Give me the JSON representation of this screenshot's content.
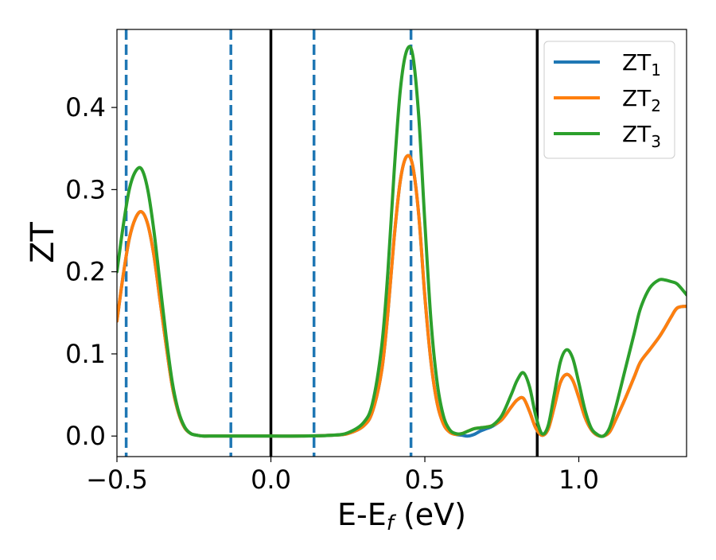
{
  "chart_data": {
    "type": "line",
    "xlabel_main": "E-E",
    "xlabel_sub": "f",
    "xlabel_unit": " (eV)",
    "ylabel": "ZT",
    "xlim": [
      -0.5,
      1.35
    ],
    "ylim": [
      -0.025,
      0.495
    ],
    "x_ticks": [
      -0.5,
      0.0,
      0.5,
      1.0
    ],
    "x_tick_labels": [
      "−0.5",
      "0.0",
      "0.5",
      "1.0"
    ],
    "y_ticks": [
      0.0,
      0.1,
      0.2,
      0.3,
      0.4
    ],
    "y_tick_labels": [
      "0.0",
      "0.1",
      "0.2",
      "0.3",
      "0.4"
    ],
    "grid": false,
    "legend_position": "top-right",
    "vlines_dashed": [
      -0.47,
      -0.13,
      0.14,
      0.455
    ],
    "vlines_solid": [
      0.0,
      0.865
    ],
    "series": [
      {
        "name": "ZT",
        "name_sub": "1",
        "color": "#1f77b4",
        "x": [
          -0.5,
          -0.48,
          -0.46,
          -0.44,
          -0.42,
          -0.4,
          -0.38,
          -0.36,
          -0.34,
          -0.32,
          -0.3,
          -0.28,
          -0.26,
          -0.24,
          -0.22,
          -0.2,
          -0.1,
          0.0,
          0.1,
          0.2,
          0.25,
          0.3,
          0.33,
          0.36,
          0.38,
          0.4,
          0.42,
          0.44,
          0.46,
          0.48,
          0.5,
          0.52,
          0.54,
          0.56,
          0.58,
          0.6,
          0.62,
          0.64,
          0.66,
          0.68,
          0.7,
          0.72,
          0.75,
          0.78,
          0.8,
          0.82,
          0.84,
          0.86,
          0.88,
          0.9,
          0.92,
          0.94,
          0.96,
          0.98,
          1.0,
          1.02,
          1.04,
          1.06,
          1.08,
          1.1,
          1.12,
          1.15,
          1.18,
          1.2,
          1.23,
          1.26,
          1.28,
          1.3,
          1.32,
          1.35
        ],
        "y": [
          0.14,
          0.195,
          0.24,
          0.265,
          0.273,
          0.258,
          0.22,
          0.165,
          0.11,
          0.06,
          0.028,
          0.01,
          0.003,
          0.001,
          0.0,
          0.0,
          0.0,
          0.0,
          0.0,
          0.001,
          0.003,
          0.012,
          0.03,
          0.08,
          0.15,
          0.24,
          0.31,
          0.34,
          0.33,
          0.27,
          0.17,
          0.09,
          0.04,
          0.015,
          0.005,
          0.002,
          0.001,
          0.0,
          0.002,
          0.006,
          0.009,
          0.012,
          0.02,
          0.035,
          0.044,
          0.046,
          0.03,
          0.01,
          0.001,
          0.008,
          0.035,
          0.065,
          0.075,
          0.068,
          0.047,
          0.023,
          0.008,
          0.001,
          0.0,
          0.005,
          0.02,
          0.045,
          0.072,
          0.09,
          0.105,
          0.12,
          0.132,
          0.145,
          0.156,
          0.158
        ]
      },
      {
        "name": "ZT",
        "name_sub": "2",
        "color": "#ff7f0e",
        "x": [
          -0.5,
          -0.48,
          -0.46,
          -0.44,
          -0.42,
          -0.4,
          -0.38,
          -0.36,
          -0.34,
          -0.32,
          -0.3,
          -0.28,
          -0.26,
          -0.24,
          -0.22,
          -0.2,
          -0.1,
          0.0,
          0.1,
          0.2,
          0.25,
          0.3,
          0.33,
          0.36,
          0.38,
          0.4,
          0.42,
          0.44,
          0.46,
          0.48,
          0.5,
          0.52,
          0.54,
          0.56,
          0.58,
          0.6,
          0.62,
          0.64,
          0.66,
          0.68,
          0.7,
          0.72,
          0.75,
          0.78,
          0.8,
          0.82,
          0.84,
          0.86,
          0.88,
          0.9,
          0.92,
          0.94,
          0.96,
          0.98,
          1.0,
          1.02,
          1.04,
          1.06,
          1.08,
          1.1,
          1.12,
          1.15,
          1.18,
          1.2,
          1.23,
          1.26,
          1.28,
          1.3,
          1.32,
          1.35
        ],
        "y": [
          0.14,
          0.195,
          0.24,
          0.265,
          0.273,
          0.258,
          0.22,
          0.165,
          0.11,
          0.06,
          0.028,
          0.01,
          0.003,
          0.001,
          0.0,
          0.0,
          0.0,
          0.0,
          0.0,
          0.001,
          0.003,
          0.012,
          0.03,
          0.08,
          0.15,
          0.24,
          0.31,
          0.34,
          0.33,
          0.27,
          0.17,
          0.09,
          0.04,
          0.015,
          0.005,
          0.002,
          0.003,
          0.006,
          0.009,
          0.01,
          0.011,
          0.013,
          0.02,
          0.035,
          0.044,
          0.046,
          0.03,
          0.01,
          0.001,
          0.008,
          0.035,
          0.065,
          0.075,
          0.068,
          0.047,
          0.023,
          0.008,
          0.001,
          0.0,
          0.005,
          0.02,
          0.045,
          0.072,
          0.09,
          0.105,
          0.12,
          0.132,
          0.145,
          0.156,
          0.158
        ]
      },
      {
        "name": "ZT",
        "name_sub": "3",
        "color": "#2ca02c",
        "x": [
          -0.5,
          -0.48,
          -0.46,
          -0.44,
          -0.42,
          -0.4,
          -0.38,
          -0.36,
          -0.34,
          -0.32,
          -0.3,
          -0.28,
          -0.26,
          -0.24,
          -0.22,
          -0.2,
          -0.1,
          0.0,
          0.1,
          0.2,
          0.25,
          0.3,
          0.33,
          0.36,
          0.38,
          0.4,
          0.42,
          0.44,
          0.46,
          0.48,
          0.5,
          0.52,
          0.54,
          0.56,
          0.58,
          0.6,
          0.62,
          0.64,
          0.66,
          0.68,
          0.7,
          0.72,
          0.75,
          0.78,
          0.8,
          0.82,
          0.84,
          0.86,
          0.88,
          0.9,
          0.92,
          0.94,
          0.96,
          0.98,
          1.0,
          1.02,
          1.04,
          1.06,
          1.08,
          1.1,
          1.12,
          1.15,
          1.18,
          1.2,
          1.23,
          1.26,
          1.28,
          1.3,
          1.32,
          1.35
        ],
        "y": [
          0.2,
          0.255,
          0.3,
          0.322,
          0.325,
          0.3,
          0.25,
          0.185,
          0.12,
          0.065,
          0.03,
          0.011,
          0.003,
          0.001,
          0.0,
          0.0,
          0.0,
          0.0,
          0.0,
          0.001,
          0.004,
          0.016,
          0.04,
          0.11,
          0.2,
          0.32,
          0.42,
          0.468,
          0.465,
          0.39,
          0.26,
          0.14,
          0.065,
          0.025,
          0.008,
          0.003,
          0.003,
          0.006,
          0.009,
          0.01,
          0.011,
          0.013,
          0.025,
          0.05,
          0.068,
          0.077,
          0.06,
          0.025,
          0.003,
          0.012,
          0.05,
          0.09,
          0.105,
          0.095,
          0.065,
          0.032,
          0.01,
          0.002,
          0.0,
          0.01,
          0.035,
          0.08,
          0.125,
          0.155,
          0.18,
          0.19,
          0.19,
          0.188,
          0.185,
          0.172
        ]
      }
    ]
  }
}
